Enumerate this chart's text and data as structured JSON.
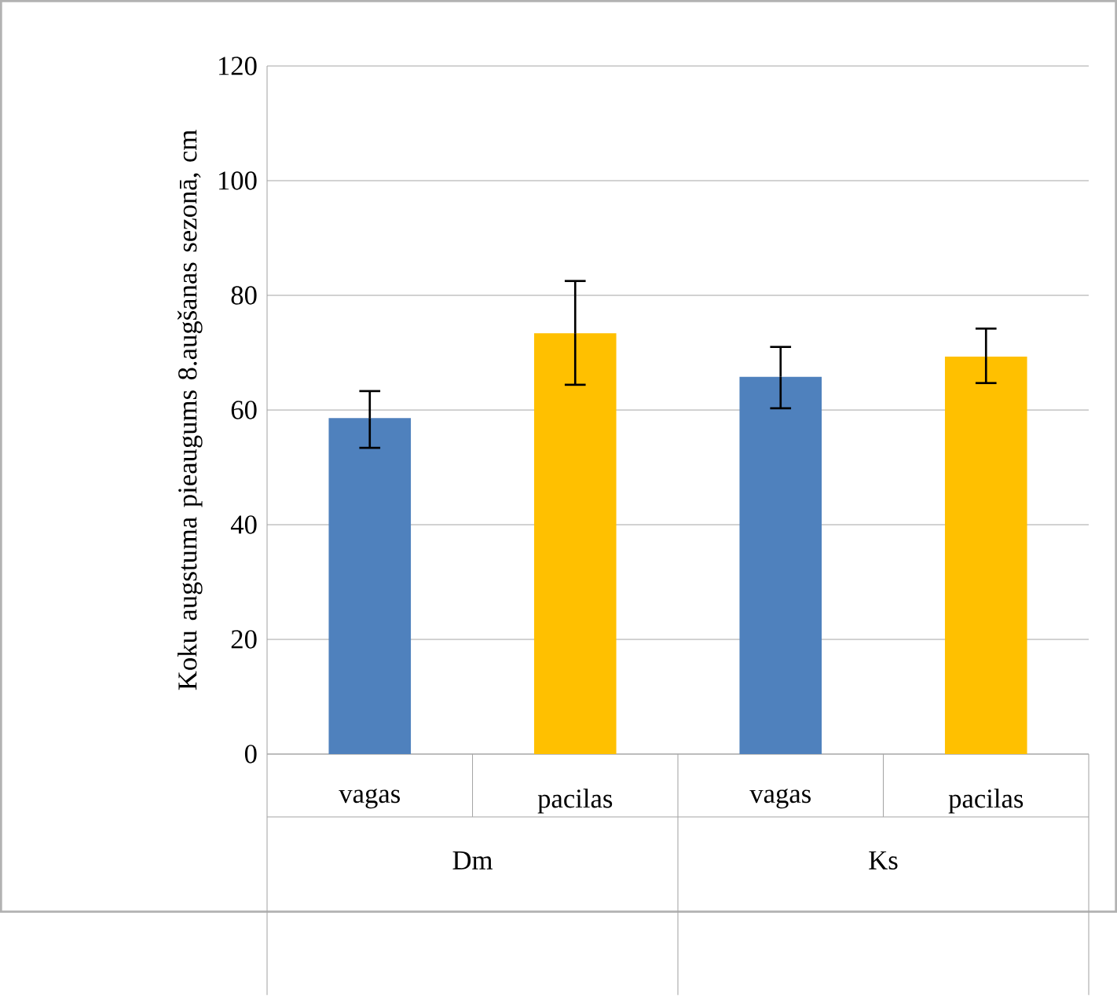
{
  "chart_data": {
    "type": "bar",
    "ylabel": "Koku augstuma pieaugums 8.augšanas sezonā, cm",
    "categories": [
      "vagas",
      "pacilas",
      "vagas",
      "pacilas"
    ],
    "values": [
      58.6,
      73.4,
      65.8,
      69.3
    ],
    "colors": [
      "#4f81bd",
      "#ffc000",
      "#4f81bd",
      "#ffc000"
    ],
    "errors": [
      [
        53.4,
        63.3
      ],
      [
        64.4,
        82.5
      ],
      [
        60.3,
        71
      ],
      [
        64.7,
        74.2
      ]
    ],
    "ylim": [
      0,
      120
    ],
    "yticks": [
      0,
      20,
      40,
      60,
      80,
      100,
      120
    ],
    "grid": "y",
    "annotations": [
      "Dm",
      "Ks"
    ]
  }
}
